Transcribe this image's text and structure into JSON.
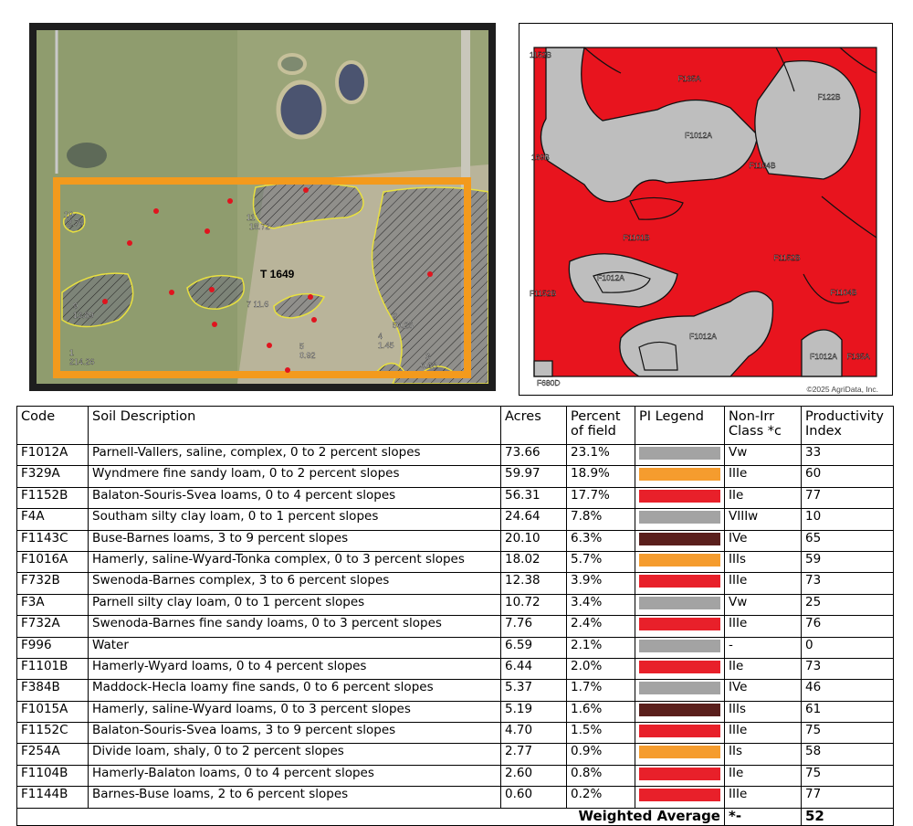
{
  "photo": {
    "labels": [
      "T 1649",
      "10",
      "2.76",
      "11",
      "18.72",
      "9",
      "13.89",
      "7 11.6",
      "1",
      "214.26",
      "5",
      "0.92",
      "4",
      "1.45",
      "2",
      "50.25",
      "3",
      "0.68"
    ]
  },
  "soil_map": {
    "labels": [
      "F135A",
      "F122B",
      "F1012A",
      "F1104B",
      "1152B",
      "169B",
      "F1101B",
      "F1152B",
      "F1012A",
      "F1104B",
      "F1152B",
      "F1012A",
      "F1012A",
      "F135A",
      "F680D"
    ],
    "copyright": "©2025 AgriData, Inc."
  },
  "table": {
    "headers": [
      "Code",
      "Soil Description",
      "Acres",
      "Percent of field",
      "PI Legend",
      "Non-Irr Class *c",
      "Productivity Index"
    ],
    "rows": [
      {
        "code": "F1012A",
        "description": "Parnell-Vallers, saline, complex, 0 to 2 percent slopes",
        "acres": "73.66",
        "percent": "23.1%",
        "pi_color": "#a3a3a3",
        "class": "Vw",
        "pi": "33"
      },
      {
        "code": "F329A",
        "description": "Wyndmere fine sandy loam, 0 to 2 percent slopes",
        "acres": "59.97",
        "percent": "18.9%",
        "pi_color": "#f59c2e",
        "class": "IIIe",
        "pi": "60"
      },
      {
        "code": "F1152B",
        "description": "Balaton-Souris-Svea loams, 0 to 4 percent slopes",
        "acres": "56.31",
        "percent": "17.7%",
        "pi_color": "#e8202a",
        "class": "IIe",
        "pi": "77"
      },
      {
        "code": "F4A",
        "description": "Southam silty clay loam, 0 to 1 percent slopes",
        "acres": "24.64",
        "percent": "7.8%",
        "pi_color": "#a3a3a3",
        "class": "VIIIw",
        "pi": "10"
      },
      {
        "code": "F1143C",
        "description": "Buse-Barnes loams, 3 to 9 percent slopes",
        "acres": "20.10",
        "percent": "6.3%",
        "pi_color": "#5a1f1c",
        "class": "IVe",
        "pi": "65"
      },
      {
        "code": "F1016A",
        "description": "Hamerly, saline-Wyard-Tonka complex, 0 to 3 percent slopes",
        "acres": "18.02",
        "percent": "5.7%",
        "pi_color": "#f59c2e",
        "class": "IIIs",
        "pi": "59"
      },
      {
        "code": "F732B",
        "description": "Swenoda-Barnes complex, 3 to 6 percent slopes",
        "acres": "12.38",
        "percent": "3.9%",
        "pi_color": "#e8202a",
        "class": "IIIe",
        "pi": "73"
      },
      {
        "code": "F3A",
        "description": "Parnell silty clay loam, 0 to 1 percent slopes",
        "acres": "10.72",
        "percent": "3.4%",
        "pi_color": "#a3a3a3",
        "class": "Vw",
        "pi": "25"
      },
      {
        "code": "F732A",
        "description": "Swenoda-Barnes fine sandy loams, 0 to 3 percent slopes",
        "acres": "7.76",
        "percent": "2.4%",
        "pi_color": "#e8202a",
        "class": "IIIe",
        "pi": "76"
      },
      {
        "code": "F996",
        "description": "Water",
        "acres": "6.59",
        "percent": "2.1%",
        "pi_color": "#a3a3a3",
        "class": "-",
        "pi": "0"
      },
      {
        "code": "F1101B",
        "description": "Hamerly-Wyard loams, 0 to 4 percent slopes",
        "acres": "6.44",
        "percent": "2.0%",
        "pi_color": "#e8202a",
        "class": "IIe",
        "pi": "73"
      },
      {
        "code": "F384B",
        "description": "Maddock-Hecla loamy fine sands, 0 to 6 percent slopes",
        "acres": "5.37",
        "percent": "1.7%",
        "pi_color": "#a3a3a3",
        "class": "IVe",
        "pi": "46"
      },
      {
        "code": "F1015A",
        "description": "Hamerly, saline-Wyard loams, 0 to 3 percent slopes",
        "acres": "5.19",
        "percent": "1.6%",
        "pi_color": "#5a1f1c",
        "class": "IIIs",
        "pi": "61"
      },
      {
        "code": "F1152C",
        "description": "Balaton-Souris-Svea loams, 3 to 9 percent slopes",
        "acres": "4.70",
        "percent": "1.5%",
        "pi_color": "#e8202a",
        "class": "IIIe",
        "pi": "75"
      },
      {
        "code": "F254A",
        "description": "Divide loam, shaly, 0 to 2 percent slopes",
        "acres": "2.77",
        "percent": "0.9%",
        "pi_color": "#f59c2e",
        "class": "IIs",
        "pi": "58"
      },
      {
        "code": "F1104B",
        "description": "Hamerly-Balaton loams, 0 to 4 percent slopes",
        "acres": "2.60",
        "percent": "0.8%",
        "pi_color": "#e8202a",
        "class": "IIe",
        "pi": "75"
      },
      {
        "code": "F1144B",
        "description": "Barnes-Buse loams, 2 to 6 percent slopes",
        "acres": "0.60",
        "percent": "0.2%",
        "pi_color": "#e8202a",
        "class": "IIIe",
        "pi": "77"
      }
    ],
    "footer": {
      "label": "Weighted Average",
      "class": "*-",
      "pi": "52"
    }
  }
}
